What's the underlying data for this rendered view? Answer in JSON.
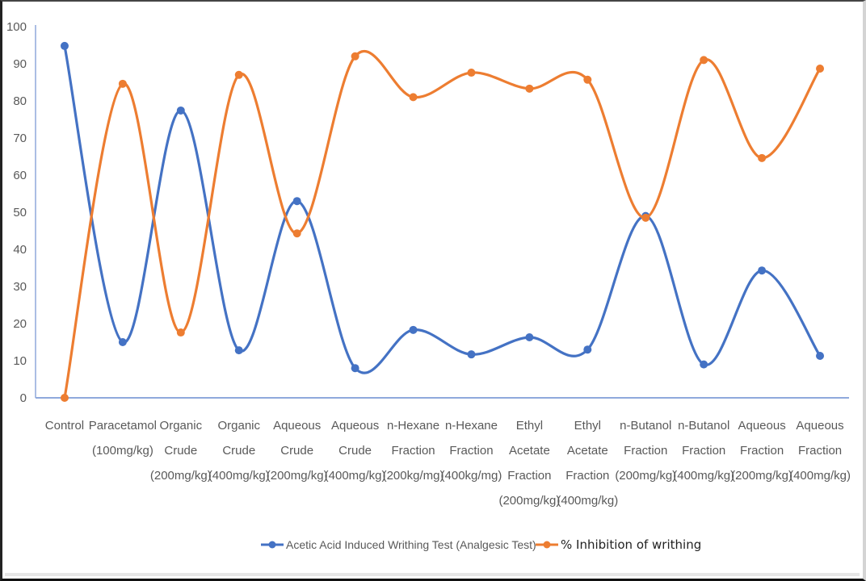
{
  "chart_data": {
    "type": "line",
    "title": "",
    "xlabel": "",
    "ylabel": "",
    "ylim": [
      0,
      100
    ],
    "yticks": [
      0,
      10,
      20,
      30,
      40,
      50,
      60,
      70,
      80,
      90,
      100
    ],
    "grid": false,
    "smooth": true,
    "legend_position": "bottom",
    "categories": [
      [
        "Control"
      ],
      [
        "Paracetamol",
        "(100mg/kg)"
      ],
      [
        "Organic",
        "Crude",
        "(200mg/kg)"
      ],
      [
        "Organic",
        "Crude",
        "(400mg/kg)"
      ],
      [
        "Aqueous",
        "Crude",
        "(200mg/kg)"
      ],
      [
        "Aqueous",
        "Crude",
        "(400mg/kg)"
      ],
      [
        "n-Hexane",
        "Fraction",
        "(200kg/mg)"
      ],
      [
        "n-Hexane",
        "Fraction",
        "(400kg/mg)"
      ],
      [
        "Ethyl",
        "Acetate",
        "Fraction",
        "(200mg/kg)"
      ],
      [
        "Ethyl",
        "Acetate",
        "Fraction",
        "(400mg/kg)"
      ],
      [
        "n-Butanol",
        "Fraction",
        "(200mg/kg)"
      ],
      [
        "n-Butanol",
        "Fraction",
        "(400mg/kg)"
      ],
      [
        "Aqueous",
        "Fraction",
        "(200mg/kg)"
      ],
      [
        "Aqueous",
        "Fraction",
        "(400mg/kg)"
      ]
    ],
    "series": [
      {
        "name": "Acetic Acid Induced Writhing Test (Analgesic Test)",
        "color": "#4472C4",
        "values": [
          94.8,
          15.0,
          77.4,
          12.8,
          53.0,
          8.0,
          18.3,
          11.7,
          16.3,
          13.0,
          49.0,
          9.0,
          34.3,
          11.3
        ]
      },
      {
        "name": "% Inhibition of writhing",
        "color": "#ED7D31",
        "values": [
          0,
          84.6,
          17.6,
          87.0,
          44.3,
          92.0,
          81.0,
          87.6,
          83.3,
          85.7,
          48.5,
          91.0,
          64.6,
          88.7
        ]
      }
    ]
  },
  "legend": {
    "items": [
      {
        "label": "Acetic Acid Induced Writhing Test (Analgesic Test)",
        "color": "#4472C4"
      },
      {
        "label": "% Inhibition of writhing",
        "color": "#ED7D31"
      }
    ]
  },
  "colors": {
    "axis": "#8FA9DC",
    "tick_text": "#595959"
  }
}
